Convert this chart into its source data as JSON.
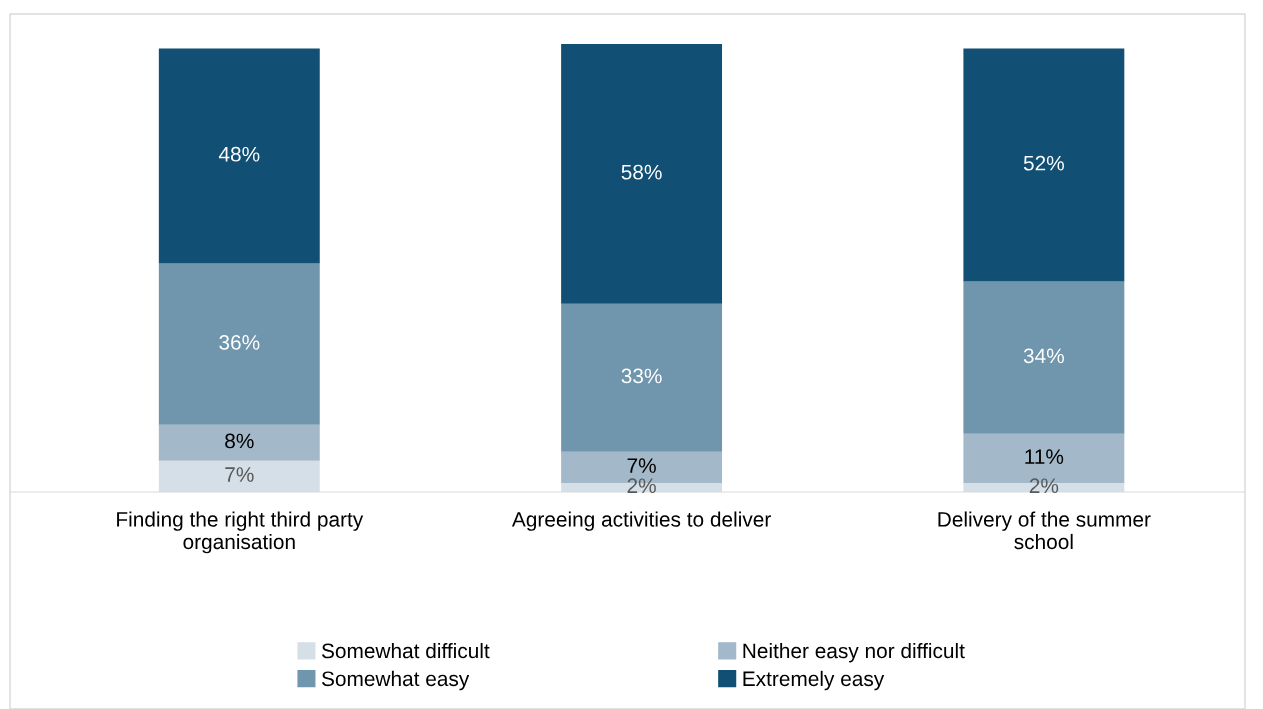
{
  "chart_data": {
    "type": "bar",
    "stacked": true,
    "legend": "bottom",
    "grid": false,
    "categories": [
      "Finding the right third party\norganisation",
      "Agreeing activities to deliver",
      "Delivery of the summer\nschool"
    ],
    "series": [
      {
        "name": "Somewhat difficult",
        "color": "#d5dfe7",
        "values": [
          7,
          2,
          2
        ],
        "value_labels": [
          "7%",
          "2%",
          "2%"
        ]
      },
      {
        "name": "Neither easy nor difficult",
        "color": "#a3b9c9",
        "values": [
          8,
          7,
          11
        ],
        "value_labels": [
          "8%",
          "7%",
          "11%"
        ]
      },
      {
        "name": "Somewhat easy",
        "color": "#7096ad",
        "values": [
          36,
          33,
          34
        ],
        "value_labels": [
          "36%",
          "33%",
          "34%"
        ]
      },
      {
        "name": "Extremely easy",
        "color": "#114f74",
        "values": [
          48,
          58,
          52
        ],
        "value_labels": [
          "48%",
          "58%",
          "52%"
        ]
      }
    ]
  }
}
